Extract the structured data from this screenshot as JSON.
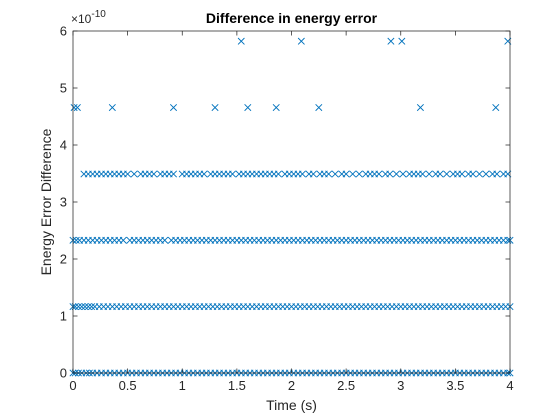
{
  "chart_data": {
    "type": "scatter",
    "title": "Difference in energy error",
    "xlabel": "Time (s)",
    "ylabel": "Energy Error Difference",
    "y_exponent_label": "×10",
    "y_exponent_power": "-10",
    "xlim": [
      0,
      4
    ],
    "ylim": [
      0,
      6
    ],
    "y_scale_factor": 1e-10,
    "xticks": [
      0,
      0.5,
      1,
      1.5,
      2,
      2.5,
      3,
      3.5,
      4
    ],
    "xtick_labels": [
      "0",
      "0.5",
      "1",
      "1.5",
      "2",
      "2.5",
      "3",
      "3.5",
      "4"
    ],
    "yticks": [
      0,
      1,
      2,
      3,
      4,
      5,
      6
    ],
    "ytick_labels": [
      "0",
      "1",
      "2",
      "3",
      "4",
      "5",
      "6"
    ],
    "grid": false,
    "marker": "x",
    "color": "#0072BD",
    "series": [
      {
        "levels": [
          {
            "y": 0.0,
            "x": [
              0.0,
              0.02,
              0.05,
              0.08,
              0.12,
              0.15,
              0.18,
              0.22,
              0.26,
              0.3,
              0.34,
              0.38,
              0.42,
              0.46,
              0.5,
              0.54,
              0.58,
              0.62,
              0.66,
              0.7,
              0.74,
              0.78,
              0.82,
              0.86,
              0.9,
              0.94,
              0.98,
              1.02,
              1.06,
              1.1,
              1.14,
              1.18,
              1.22,
              1.26,
              1.3,
              1.34,
              1.38,
              1.42,
              1.46,
              1.5,
              1.54,
              1.58,
              1.62,
              1.66,
              1.7,
              1.74,
              1.78,
              1.82,
              1.86,
              1.9,
              1.94,
              1.98,
              2.02,
              2.06,
              2.1,
              2.14,
              2.18,
              2.22,
              2.26,
              2.3,
              2.34,
              2.38,
              2.42,
              2.46,
              2.5,
              2.54,
              2.58,
              2.62,
              2.66,
              2.7,
              2.74,
              2.78,
              2.82,
              2.86,
              2.9,
              2.94,
              2.98,
              3.02,
              3.06,
              3.1,
              3.14,
              3.18,
              3.22,
              3.26,
              3.3,
              3.34,
              3.38,
              3.42,
              3.46,
              3.5,
              3.54,
              3.58,
              3.62,
              3.66,
              3.7,
              3.74,
              3.78,
              3.82,
              3.86,
              3.9,
              3.94,
              3.98,
              4.0
            ]
          },
          {
            "y": 1.164,
            "x": [
              0.0,
              0.02,
              0.05,
              0.08,
              0.11,
              0.14,
              0.17,
              0.2,
              0.24,
              0.28,
              0.32,
              0.36,
              0.4,
              0.44,
              0.48,
              0.52,
              0.56,
              0.6,
              0.64,
              0.68,
              0.72,
              0.76,
              0.8,
              0.84,
              0.88,
              0.92,
              0.96,
              1.0,
              1.04,
              1.08,
              1.12,
              1.16,
              1.2,
              1.24,
              1.28,
              1.32,
              1.36,
              1.4,
              1.44,
              1.48,
              1.52,
              1.56,
              1.6,
              1.64,
              1.68,
              1.72,
              1.76,
              1.8,
              1.84,
              1.88,
              1.92,
              1.96,
              2.0,
              2.04,
              2.08,
              2.12,
              2.16,
              2.2,
              2.24,
              2.28,
              2.32,
              2.36,
              2.4,
              2.44,
              2.48,
              2.52,
              2.56,
              2.6,
              2.64,
              2.68,
              2.72,
              2.76,
              2.8,
              2.84,
              2.88,
              2.92,
              2.96,
              3.0,
              3.04,
              3.08,
              3.12,
              3.16,
              3.2,
              3.24,
              3.28,
              3.32,
              3.36,
              3.4,
              3.44,
              3.48,
              3.52,
              3.56,
              3.6,
              3.64,
              3.68,
              3.72,
              3.76,
              3.8,
              3.84,
              3.88,
              3.92,
              3.96,
              4.0
            ]
          },
          {
            "y": 2.328,
            "x": [
              0.0,
              0.03,
              0.06,
              0.1,
              0.14,
              0.18,
              0.22,
              0.26,
              0.3,
              0.34,
              0.38,
              0.42,
              0.46,
              0.52,
              0.56,
              0.6,
              0.64,
              0.68,
              0.72,
              0.76,
              0.8,
              0.84,
              0.9,
              0.94,
              0.98,
              1.02,
              1.06,
              1.1,
              1.14,
              1.18,
              1.22,
              1.26,
              1.3,
              1.34,
              1.38,
              1.42,
              1.46,
              1.5,
              1.54,
              1.58,
              1.62,
              1.66,
              1.7,
              1.74,
              1.78,
              1.82,
              1.86,
              1.9,
              1.94,
              1.98,
              2.02,
              2.06,
              2.1,
              2.14,
              2.18,
              2.22,
              2.26,
              2.3,
              2.34,
              2.38,
              2.42,
              2.46,
              2.5,
              2.54,
              2.58,
              2.62,
              2.66,
              2.7,
              2.74,
              2.78,
              2.82,
              2.86,
              2.9,
              2.94,
              2.98,
              3.02,
              3.06,
              3.1,
              3.14,
              3.18,
              3.22,
              3.26,
              3.3,
              3.34,
              3.38,
              3.42,
              3.46,
              3.5,
              3.54,
              3.58,
              3.62,
              3.66,
              3.7,
              3.74,
              3.78,
              3.82,
              3.86,
              3.9,
              3.94,
              3.98,
              4.0
            ]
          },
          {
            "y": 3.492,
            "x": [
              0.1,
              0.14,
              0.18,
              0.22,
              0.26,
              0.3,
              0.34,
              0.38,
              0.42,
              0.46,
              0.5,
              0.56,
              0.62,
              0.66,
              0.7,
              0.74,
              0.8,
              0.84,
              0.88,
              0.92,
              1.0,
              1.04,
              1.08,
              1.12,
              1.16,
              1.2,
              1.26,
              1.3,
              1.34,
              1.38,
              1.42,
              1.46,
              1.52,
              1.56,
              1.6,
              1.64,
              1.68,
              1.72,
              1.76,
              1.8,
              1.84,
              1.88,
              1.94,
              1.98,
              2.02,
              2.06,
              2.1,
              2.16,
              2.2,
              2.26,
              2.3,
              2.34,
              2.4,
              2.46,
              2.5,
              2.56,
              2.62,
              2.68,
              2.72,
              2.76,
              2.8,
              2.86,
              2.9,
              2.96,
              3.02,
              3.08,
              3.12,
              3.16,
              3.2,
              3.26,
              3.32,
              3.36,
              3.42,
              3.48,
              3.52,
              3.56,
              3.62,
              3.66,
              3.72,
              3.78,
              3.84,
              3.88,
              3.94,
              3.98
            ]
          },
          {
            "y": 4.657,
            "x": [
              0.01,
              0.04,
              0.36,
              0.92,
              1.3,
              1.6,
              1.86,
              2.25,
              3.18,
              3.87
            ]
          },
          {
            "y": 5.821,
            "x": [
              1.54,
              2.09,
              2.91,
              3.01,
              3.98
            ]
          }
        ]
      }
    ]
  }
}
